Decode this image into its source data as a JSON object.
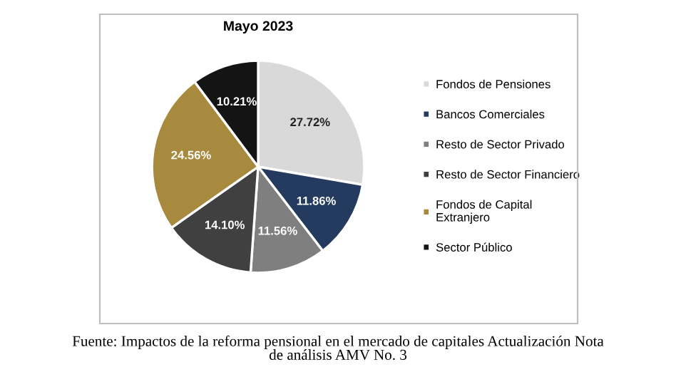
{
  "chart_data": {
    "type": "pie",
    "title": "Mayo 2023",
    "categories": [
      "Fondos de Pensiones",
      "Bancos Comerciales",
      "Resto de Sector Privado",
      "Resto de Sector Financiero",
      "Fondos de Capital\nExtranjero",
      "Sector Público"
    ],
    "values": [
      27.72,
      11.86,
      11.56,
      14.1,
      24.56,
      10.21
    ],
    "colors": [
      "#d9d9d9",
      "#243a5e",
      "#7f7f7f",
      "#404040",
      "#a88a3e",
      "#141414"
    ],
    "value_labels": [
      "27.72%",
      "11.86%",
      "11.56%",
      "14.10%",
      "24.56%",
      "10.21%"
    ],
    "legend": "right",
    "annotations": [
      "Fuente: Impactos de la reforma pensional en el mercado de capitales Actualización Nota\nde análisis AMV No. 3"
    ]
  }
}
